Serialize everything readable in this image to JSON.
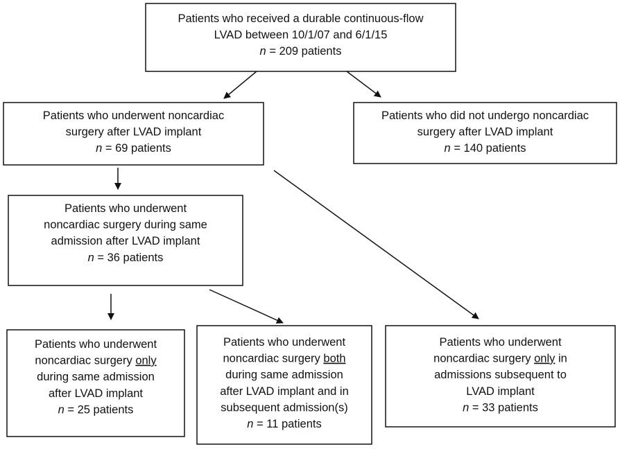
{
  "nodes": [
    {
      "lines": [
        [
          "Patients who received a durable continuous-flow"
        ],
        [
          "LVAD between 10/1/07 and 6/1/15"
        ],
        [
          {
            "italic": "n"
          },
          " = 209 patients"
        ]
      ]
    },
    {
      "lines": [
        [
          "Patients who underwent noncardiac"
        ],
        [
          "surgery after LVAD implant"
        ],
        [
          {
            "italic": "n"
          },
          " = 69 patients"
        ]
      ]
    },
    {
      "lines": [
        [
          "Patients who did not undergo noncardiac"
        ],
        [
          "surgery after LVAD implant"
        ],
        [
          {
            "italic": "n"
          },
          " = 140 patients"
        ]
      ]
    },
    {
      "lines": [
        [
          "Patients who underwent"
        ],
        [
          "noncardiac surgery during same"
        ],
        [
          "admission after LVAD implant"
        ],
        [
          {
            "italic": "n"
          },
          " = 36 patients"
        ]
      ]
    },
    {
      "lines": [
        [
          "Patients who underwent"
        ],
        [
          "noncardiac surgery ",
          {
            "underline": "only"
          }
        ],
        [
          "during same admission"
        ],
        [
          "after LVAD implant"
        ],
        [
          {
            "italic": "n"
          },
          " = 25 patients"
        ]
      ]
    },
    {
      "lines": [
        [
          "Patients who underwent"
        ],
        [
          "noncardiac surgery ",
          {
            "underline": "both"
          }
        ],
        [
          "during same admission"
        ],
        [
          "after LVAD implant and in"
        ],
        [
          "subsequent admission(s)"
        ],
        [
          {
            "italic": "n"
          },
          " = 11 patients"
        ]
      ]
    },
    {
      "lines": [
        [
          "Patients who underwent"
        ],
        [
          "noncardiac surgery ",
          {
            "underline": "only"
          },
          " in"
        ],
        [
          "admissions subsequent to"
        ],
        [
          "LVAD implant"
        ],
        [
          {
            "italic": "n"
          },
          " = 33 patients"
        ]
      ]
    }
  ]
}
